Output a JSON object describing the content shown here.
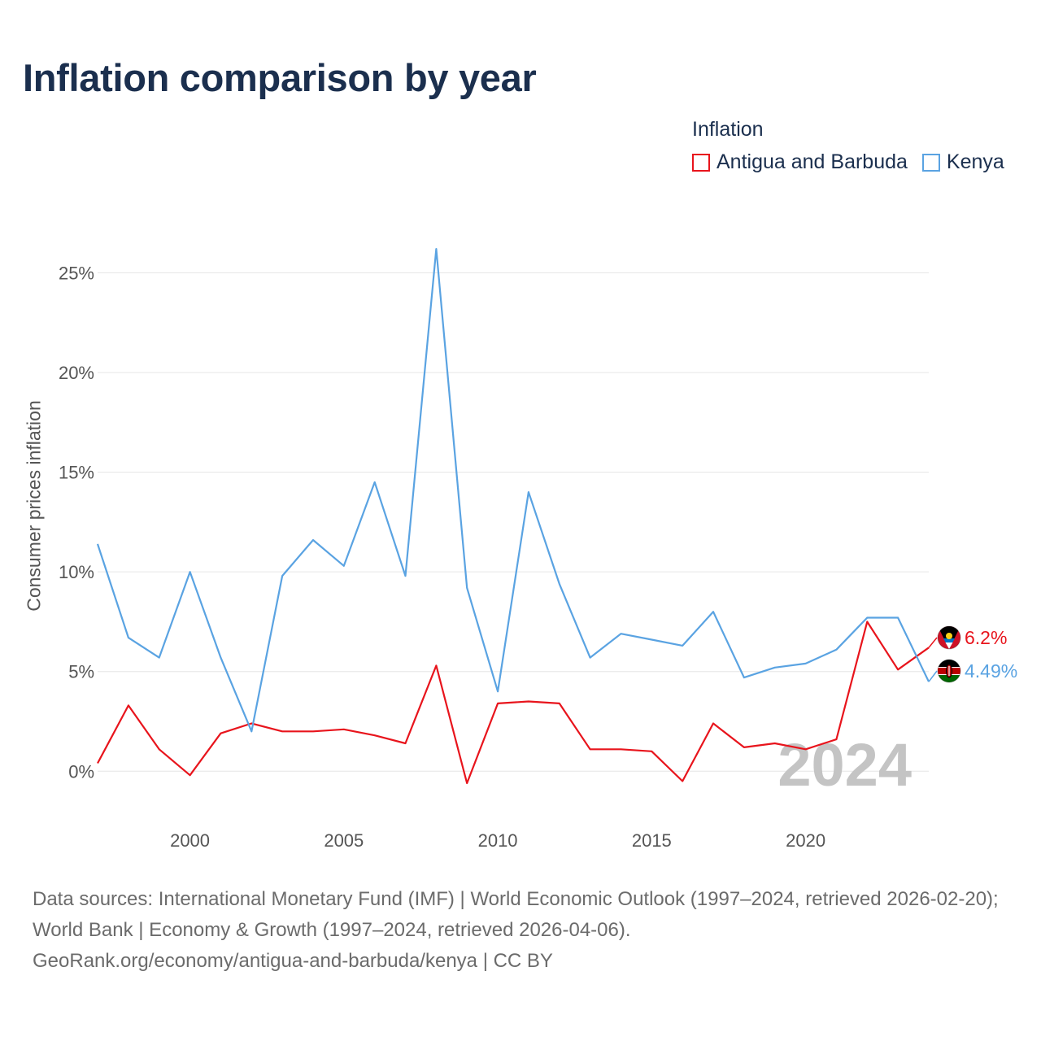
{
  "title": "Inflation comparison by year",
  "legend": {
    "title": "Inflation",
    "items": [
      {
        "label": "Antigua and Barbuda",
        "color": "#e8141c"
      },
      {
        "label": "Kenya",
        "color": "#5aa3e2"
      }
    ]
  },
  "footer": {
    "line1": "Data sources: International Monetary Fund (IMF) | World Economic Outlook (1997–2024, retrieved 2026-02-20); World Bank | Economy & Growth (1997–2024, retrieved 2026-04-06).",
    "line2": "GeoRank.org/economy/antigua-and-barbuda/kenya | CC BY"
  },
  "chart_data": {
    "type": "line",
    "title": "Inflation comparison by year",
    "xlabel": "",
    "ylabel": "Consumer prices inflation",
    "xlim": [
      1997,
      2024
    ],
    "ylim": [
      -2.6,
      28
    ],
    "x_ticks": [
      2000,
      2005,
      2010,
      2015,
      2020
    ],
    "x_tick_labels": [
      "2000",
      "2005",
      "2010",
      "2015",
      "2020"
    ],
    "y_ticks": [
      0,
      5,
      10,
      15,
      20,
      25
    ],
    "y_tick_labels": [
      "0%",
      "5%",
      "10%",
      "15%",
      "20%",
      "25%"
    ],
    "grid": true,
    "legend_position": "top-right",
    "year_stamp": "2024",
    "x": [
      1997,
      1998,
      1999,
      2000,
      2001,
      2002,
      2003,
      2004,
      2005,
      2006,
      2007,
      2008,
      2009,
      2010,
      2011,
      2012,
      2013,
      2014,
      2015,
      2016,
      2017,
      2018,
      2019,
      2020,
      2021,
      2022,
      2023,
      2024
    ],
    "series": [
      {
        "name": "Antigua and Barbuda",
        "color": "#e8141c",
        "values": [
          0.4,
          3.3,
          1.1,
          -0.2,
          1.9,
          2.4,
          2.0,
          2.0,
          2.1,
          1.8,
          1.4,
          5.3,
          -0.6,
          3.4,
          3.5,
          3.4,
          1.1,
          1.1,
          1.0,
          -0.5,
          2.4,
          1.2,
          1.4,
          1.1,
          1.6,
          7.5,
          5.1,
          6.2
        ],
        "end_label": "6.2%",
        "flag": "antigua-and-barbuda-flag-icon"
      },
      {
        "name": "Kenya",
        "color": "#5aa3e2",
        "values": [
          11.4,
          6.7,
          5.7,
          10.0,
          5.7,
          2.0,
          9.8,
          11.6,
          10.3,
          14.5,
          9.8,
          26.2,
          9.2,
          4.0,
          14.0,
          9.4,
          5.7,
          6.9,
          6.6,
          6.3,
          8.0,
          4.7,
          5.2,
          5.4,
          6.1,
          7.7,
          7.7,
          4.49
        ],
        "end_label": "4.49%",
        "flag": "kenya-flag-icon"
      }
    ]
  }
}
